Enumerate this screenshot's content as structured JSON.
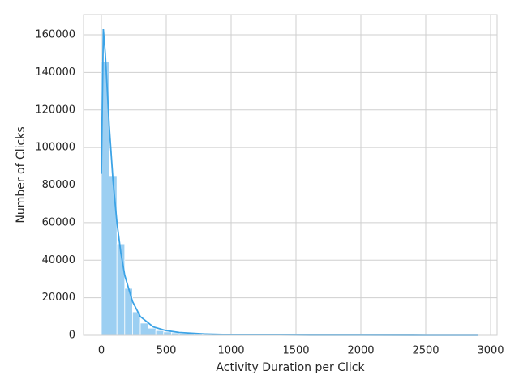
{
  "chart_data": {
    "type": "histogram",
    "xlabel": "Activity Duration per Click",
    "ylabel": "Number of Clicks",
    "bins": [
      0,
      60,
      120,
      180,
      240,
      300,
      360,
      420,
      480,
      540,
      600,
      660,
      720,
      780,
      840,
      900,
      960,
      1020,
      1080,
      1140,
      1200,
      1260,
      1320,
      1380,
      1440,
      1500,
      1560,
      1620,
      1680,
      1740,
      1800,
      1860,
      1920,
      1980,
      2040,
      2100,
      2160,
      2220,
      2280,
      2340,
      2400,
      2460,
      2520,
      2580,
      2640,
      2700,
      2760,
      2820,
      2880,
      2940,
      3000
    ],
    "values": [
      145700,
      85000,
      48700,
      25000,
      12500,
      6500,
      3800,
      2500,
      1800,
      1300,
      1000,
      800,
      650,
      500,
      400,
      330,
      270,
      220,
      180,
      150,
      120,
      100,
      85,
      70,
      60,
      50,
      40,
      35,
      30,
      25,
      20,
      18,
      15,
      12,
      10,
      9,
      8,
      7,
      6,
      5,
      4,
      4,
      3,
      3,
      2,
      2,
      2,
      1,
      1,
      1
    ],
    "color": "#9ccff2",
    "kde": {
      "x": [
        0,
        15,
        30,
        60,
        90,
        120,
        150,
        180,
        240,
        300,
        400,
        500,
        600,
        800,
        1000,
        1500,
        2000,
        2500,
        2900
      ],
      "values": [
        86000,
        163000,
        150000,
        112000,
        82000,
        60000,
        44000,
        32000,
        18000,
        10000,
        4500,
        2500,
        1500,
        700,
        350,
        100,
        40,
        15,
        5
      ],
      "color": "#3ca3e6"
    },
    "xlim": [
      -137.5,
      3050
    ],
    "ylim": [
      0,
      170782
    ],
    "xticks": [
      0,
      500,
      1000,
      1500,
      2000,
      2500,
      3000
    ],
    "yticks": [
      0,
      20000,
      40000,
      60000,
      80000,
      100000,
      120000,
      140000,
      160000
    ],
    "grid": true
  }
}
